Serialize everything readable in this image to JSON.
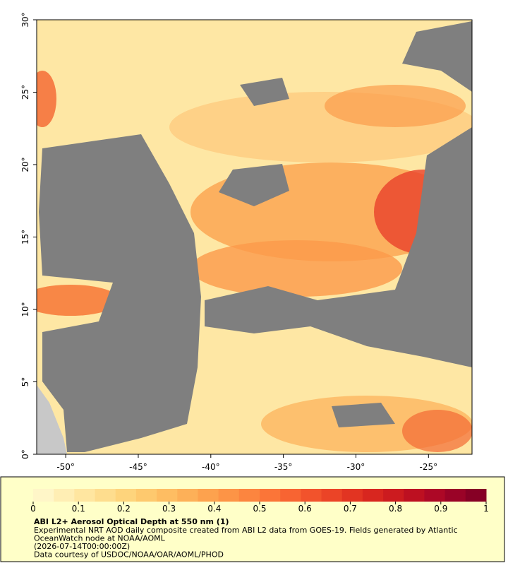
{
  "map": {
    "xlim": [
      -52,
      -22
    ],
    "ylim": [
      0,
      30
    ],
    "lon_ticks": [
      {
        "value": -50,
        "label": "-50°"
      },
      {
        "value": -45,
        "label": "-45°"
      },
      {
        "value": -40,
        "label": "-40°"
      },
      {
        "value": -35,
        "label": "-35°"
      },
      {
        "value": -30,
        "label": "-30°"
      },
      {
        "value": -25,
        "label": "-25°"
      }
    ],
    "lat_ticks": [
      {
        "value": 0,
        "label": "0°"
      },
      {
        "value": 5,
        "label": "5°"
      },
      {
        "value": 10,
        "label": "10°"
      },
      {
        "value": 15,
        "label": "15°"
      },
      {
        "value": 20,
        "label": "20°"
      },
      {
        "value": 25,
        "label": "25°"
      },
      {
        "value": 30,
        "label": "30°"
      }
    ],
    "colorbar": {
      "lim": [
        0,
        1
      ],
      "ticks": [
        0,
        0.1,
        0.2,
        0.3,
        0.4,
        0.5,
        0.6,
        0.7,
        0.8,
        0.9,
        1
      ],
      "colors": [
        "#fff6c8",
        "#ffeeb4",
        "#ffe6a0",
        "#fedd8e",
        "#fed47c",
        "#fec96e",
        "#febd62",
        "#fdb058",
        "#fda24e",
        "#fd9446",
        "#fc853f",
        "#fb7538",
        "#f86432",
        "#f2532c",
        "#eb4427",
        "#e23422",
        "#d8261f",
        "#cc1b1f",
        "#bd1021",
        "#ad0826",
        "#9a0327",
        "#860025"
      ],
      "title": "ABI L2+ Aerosol Optical Depth at 550 nm (1)"
    },
    "caption": [
      "Experimental NRT AOD daily composite created from ABI L2 data from GOES-19. Fields generated by Atlantic",
      "OceanWatch node at NOAA/AOML",
      "(2026-07-14T00:00:00Z)",
      "Data courtesy of USDOC/NOAA/OAR/AOML/PHOD"
    ]
  }
}
